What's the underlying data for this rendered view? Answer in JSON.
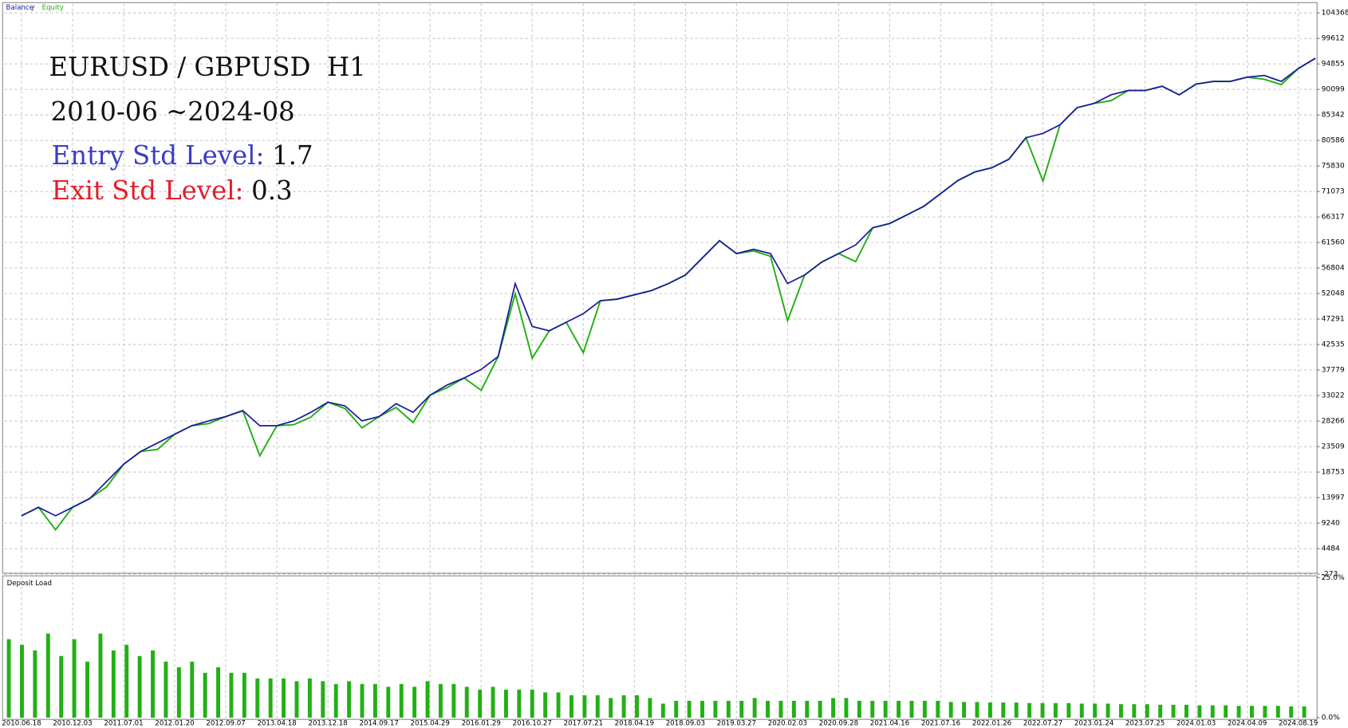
{
  "chart_data": [
    {
      "type": "line",
      "title": "Balance / Equity",
      "annotations": {
        "symbol": "EURUSD / GBPUSD  H1",
        "period": "2010-06 ~2024-08",
        "entry_label": "Entry Std Level:",
        "entry_value": 1.7,
        "exit_label": "Exit Std Level:",
        "exit_value": 0.3
      },
      "categories": [
        "2010.06.18",
        null,
        null,
        "2010.12.03",
        null,
        null,
        "2011.07.01",
        null,
        null,
        "2012.01.20",
        null,
        null,
        "2012.09.07",
        null,
        null,
        "2013.04.18",
        null,
        null,
        "2013.12.18",
        null,
        null,
        "2014.09.17",
        null,
        null,
        "2015.04.29",
        null,
        null,
        "2016.01.29",
        null,
        null,
        "2016.10.27",
        null,
        null,
        "2017.07.21",
        null,
        null,
        "2018.04.19",
        null,
        null,
        "2018.09.03",
        null,
        null,
        "2019.03.27",
        null,
        null,
        "2020.02.03",
        null,
        null,
        "2020.09.28",
        null,
        null,
        "2021.04.16",
        null,
        null,
        "2021.07.16",
        null,
        null,
        "2022.01.26",
        null,
        null,
        "2022.07.27",
        null,
        null,
        "2023.01.24",
        null,
        null,
        "2023.07.25",
        null,
        null,
        "2024.01.03",
        null,
        null,
        "2024.04.09",
        null,
        null,
        "2024.08.19",
        null
      ],
      "series": [
        {
          "name": "Equity",
          "color": "#22b014",
          "values": [
            10600,
            12200,
            8000,
            12200,
            13800,
            16000,
            20200,
            22600,
            23000,
            25800,
            27400,
            27800,
            29100,
            30200,
            21800,
            27400,
            27600,
            29000,
            31800,
            30600,
            27000,
            29100,
            30800,
            28000,
            33100,
            34500,
            36300,
            34000,
            40300,
            52000,
            40000,
            45100,
            46700,
            41000,
            50700,
            51000,
            51800,
            52600,
            53900,
            55500,
            58700,
            61900,
            59500,
            60000,
            59000,
            47000,
            55500,
            57900,
            59500,
            58000,
            64300,
            65100,
            66700,
            68300,
            70700,
            73100,
            74700,
            75500,
            77100,
            81100,
            73000,
            83500,
            86700,
            87500,
            88000,
            89900,
            89900,
            90700,
            89100,
            91100,
            91600,
            91600,
            92400,
            92000,
            91000,
            94000,
            95900
          ]
        },
        {
          "name": "Balance",
          "color": "#1a1aa0",
          "values": [
            10600,
            12200,
            10600,
            12200,
            13800,
            17000,
            20200,
            22600,
            24200,
            25800,
            27400,
            28300,
            29100,
            30200,
            27400,
            27400,
            28300,
            29900,
            31800,
            31100,
            28300,
            29100,
            31500,
            29900,
            33100,
            35000,
            36300,
            37900,
            40300,
            53900,
            45900,
            45100,
            46700,
            48300,
            50700,
            51000,
            51800,
            52600,
            53900,
            55500,
            58700,
            61900,
            59500,
            60300,
            59500,
            53900,
            55500,
            57900,
            59500,
            61100,
            64300,
            65100,
            66700,
            68300,
            70700,
            73100,
            74700,
            75500,
            77100,
            81100,
            81900,
            83500,
            86700,
            87500,
            89100,
            89900,
            89900,
            90700,
            89100,
            91100,
            91600,
            91600,
            92400,
            92700,
            91600,
            94000,
            95900
          ]
        }
      ],
      "ylim": [
        -273,
        104368
      ],
      "yticks": [
        -273,
        4484,
        9240,
        13997,
        18753,
        23509,
        28266,
        33022,
        37779,
        42535,
        47291,
        52048,
        56804,
        61560,
        66317,
        71073,
        75830,
        80586,
        85342,
        90099,
        94855,
        99612,
        104368
      ],
      "grid": true
    },
    {
      "type": "bar",
      "title": "Deposit Load",
      "color": "#22b014",
      "values": [
        14,
        13,
        12,
        15,
        11,
        14,
        10,
        15,
        12,
        13,
        11,
        12,
        10,
        9,
        10,
        8,
        9,
        8,
        8,
        7,
        7,
        7,
        6.5,
        7,
        6.5,
        6,
        6.5,
        6,
        6,
        5.5,
        6,
        5.5,
        6.5,
        6,
        6,
        5.5,
        5,
        5.5,
        5,
        5,
        5,
        4.5,
        4.5,
        4,
        4,
        4,
        3.5,
        4,
        4,
        3.5,
        2.5,
        3,
        3,
        3,
        3,
        3,
        3,
        3.5,
        3,
        3,
        3,
        3,
        3,
        3.5,
        3.5,
        3,
        3,
        3,
        3,
        3,
        3,
        3,
        2.8,
        2.8,
        2.8,
        2.7,
        2.7,
        2.7,
        2.6,
        2.6,
        2.6,
        2.6,
        2.5,
        2.5,
        2.5,
        2.4,
        2.4,
        2.4,
        2.3,
        2.3,
        2.3,
        2.2,
        2.2,
        2.2,
        2.1,
        2.1,
        2.1,
        2.1,
        2,
        2
      ],
      "ylim": [
        0,
        25
      ],
      "yticks": [
        {
          "value": 0,
          "label": "0.0%"
        },
        {
          "value": 25,
          "label": "25.0%"
        }
      ],
      "grid": true
    }
  ]
}
